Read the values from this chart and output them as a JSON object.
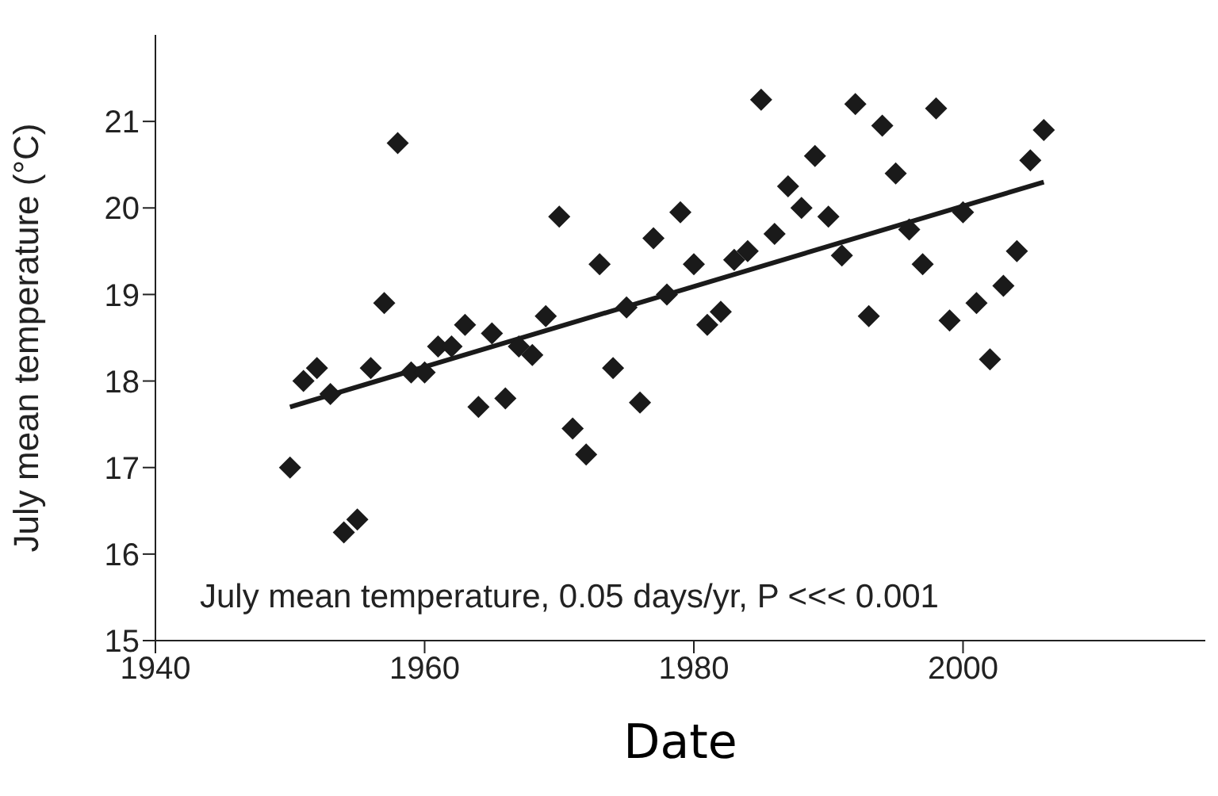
{
  "chart_data": {
    "type": "scatter",
    "xlabel": "Date",
    "ylabel": "July mean temperature (°C)",
    "annotations": [
      "July mean temperature, 0.05 days/yr, P <<< 0.001"
    ],
    "xlim": [
      1940,
      2018
    ],
    "xticks": [
      1940,
      1960,
      1980,
      2000
    ],
    "ylim": [
      15,
      22
    ],
    "yticks": [
      15,
      16,
      17,
      18,
      19,
      20,
      21
    ],
    "marker": "diamond",
    "series": [
      {
        "color": "#1a1a1a",
        "x": [
          1950,
          1951,
          1952,
          1953,
          1954,
          1955,
          1956,
          1957,
          1958,
          1959,
          1960,
          1961,
          1962,
          1963,
          1964,
          1965,
          1966,
          1967,
          1968,
          1969,
          1970,
          1971,
          1972,
          1973,
          1974,
          1975,
          1976,
          1977,
          1978,
          1979,
          1980,
          1981,
          1982,
          1983,
          1984,
          1985,
          1986,
          1987,
          1988,
          1989,
          1990,
          1991,
          1992,
          1993,
          1994,
          1995,
          1996,
          1997,
          1998,
          1999,
          2000,
          2001,
          2002,
          2003,
          2004,
          2005,
          2006
        ],
        "values": [
          17.0,
          18.0,
          18.15,
          17.85,
          16.25,
          16.4,
          18.15,
          18.9,
          20.75,
          18.1,
          18.1,
          18.4,
          18.4,
          18.65,
          17.7,
          18.55,
          17.8,
          18.4,
          18.3,
          18.75,
          19.9,
          17.45,
          17.15,
          19.35,
          18.15,
          18.85,
          17.75,
          19.65,
          19.0,
          19.95,
          19.35,
          18.65,
          18.8,
          19.4,
          19.5,
          21.25,
          19.7,
          20.25,
          20.0,
          20.6,
          19.9,
          19.45,
          21.2,
          18.75,
          20.95,
          20.4,
          19.75,
          19.35,
          21.15,
          18.7,
          19.95,
          18.9,
          18.25,
          19.1,
          19.5,
          20.55,
          20.9
        ]
      },
      {
        "type": "line",
        "color": "#1a1a1a",
        "line_style": "solid",
        "marker": "none",
        "x": [
          1950,
          2006
        ],
        "values": [
          17.7,
          20.3
        ]
      }
    ]
  }
}
